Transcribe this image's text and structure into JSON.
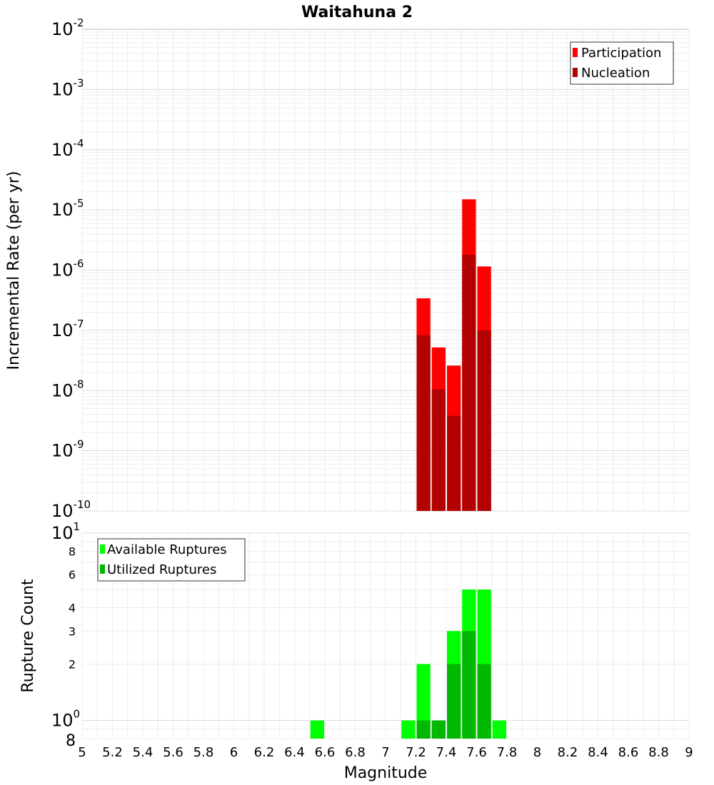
{
  "chart_data": [
    {
      "type": "bar",
      "title": "Waitahuna 2",
      "ylabel": "Incremental Rate (per yr)",
      "xlabel": "",
      "scale": "log",
      "xlim": [
        5,
        9
      ],
      "ylim": [
        1e-10,
        0.01
      ],
      "bin_width": 0.1,
      "grid": true,
      "legend_position": "top-right",
      "legend": [
        "Participation",
        "Nucleation"
      ],
      "y_ticks": [
        {
          "base": "10",
          "exp": "-2"
        },
        {
          "base": "10",
          "exp": "-3"
        },
        {
          "base": "10",
          "exp": "-4"
        },
        {
          "base": "10",
          "exp": "-5"
        },
        {
          "base": "10",
          "exp": "-6"
        },
        {
          "base": "10",
          "exp": "-7"
        },
        {
          "base": "10",
          "exp": "-8"
        },
        {
          "base": "10",
          "exp": "-9"
        },
        {
          "base": "10",
          "exp": "-10"
        }
      ],
      "series": [
        {
          "name": "Participation",
          "color": "#ff0000",
          "x": [
            7.25,
            7.35,
            7.45,
            7.55,
            7.65
          ],
          "values": [
            3.4e-07,
            5.2e-08,
            2.6e-08,
            1.5e-05,
            1.15e-06
          ]
        },
        {
          "name": "Nucleation",
          "color": "#b30000",
          "x": [
            7.25,
            7.35,
            7.45,
            7.55,
            7.65
          ],
          "values": [
            8.3e-08,
            1.05e-08,
            3.8e-09,
            1.8e-06,
            1e-07
          ]
        }
      ]
    },
    {
      "type": "bar",
      "title": "",
      "ylabel": "Rupture Count",
      "xlabel": "Magnitude",
      "scale": "log",
      "xlim": [
        5,
        9
      ],
      "ylim": [
        0.8,
        10
      ],
      "bin_width": 0.1,
      "grid": true,
      "legend_position": "top-left",
      "legend": [
        "Available Ruptures",
        "Utilized Ruptures"
      ],
      "y_major_ticks": [
        {
          "value": 10,
          "base": "10",
          "exp": "1"
        },
        {
          "value": 1,
          "base": "10",
          "exp": "0"
        }
      ],
      "y_minor_ticks": [
        8,
        6,
        4,
        3,
        2
      ],
      "y_bottom_label": "8",
      "x_ticks": [
        "5",
        "5.2",
        "5.4",
        "5.6",
        "5.8",
        "6",
        "6.2",
        "6.4",
        "6.6",
        "6.8",
        "7",
        "7.2",
        "7.4",
        "7.6",
        "7.8",
        "8",
        "8.2",
        "8.4",
        "8.6",
        "8.8",
        "9"
      ],
      "series": [
        {
          "name": "Available Ruptures",
          "color": "#00ff00",
          "x": [
            6.55,
            7.15,
            7.25,
            7.35,
            7.45,
            7.55,
            7.65,
            7.75
          ],
          "values": [
            1,
            1,
            2,
            1,
            3,
            5,
            5,
            1
          ]
        },
        {
          "name": "Utilized Ruptures",
          "color": "#00b800",
          "x": [
            7.25,
            7.35,
            7.45,
            7.55,
            7.65
          ],
          "values": [
            1,
            1,
            2,
            3,
            2
          ]
        }
      ]
    }
  ]
}
